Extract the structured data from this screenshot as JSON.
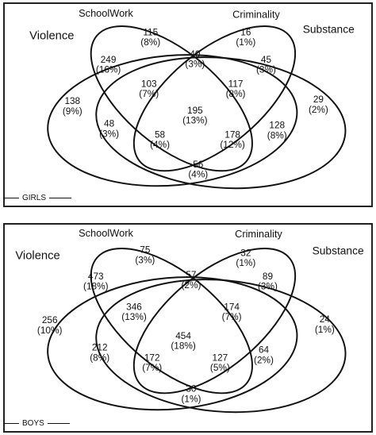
{
  "panels": [
    {
      "id": "girls",
      "name": "GIRLS",
      "sets": {
        "violence": "Violence",
        "schoolwork": "SchoolWork",
        "criminality": "Criminality",
        "substance": "Substance"
      },
      "regions": [
        {
          "key": "schoolwork_only",
          "count": "115",
          "pct": "(8%)"
        },
        {
          "key": "criminality_only",
          "count": "16",
          "pct": "(1%)"
        },
        {
          "key": "violence_schoolwork",
          "count": "249",
          "pct": "(16%)"
        },
        {
          "key": "schoolwork_criminality",
          "count": "40",
          "pct": "(3%)"
        },
        {
          "key": "criminality_substance",
          "count": "45",
          "pct": "(3%)"
        },
        {
          "key": "violence_only",
          "count": "138",
          "pct": "(9%)"
        },
        {
          "key": "violence_schoolwork_criminality",
          "count": "103",
          "pct": "(7%)"
        },
        {
          "key": "schoolwork_criminality_substance",
          "count": "117",
          "pct": "(8%)"
        },
        {
          "key": "substance_only",
          "count": "29",
          "pct": "(2%)"
        },
        {
          "key": "all_four",
          "count": "195",
          "pct": "(13%)"
        },
        {
          "key": "violence_criminality",
          "count": "48",
          "pct": "(3%)"
        },
        {
          "key": "schoolwork_substance",
          "count": "128",
          "pct": "(8%)"
        },
        {
          "key": "violence_criminality_substance",
          "count": "58",
          "pct": "(4%)"
        },
        {
          "key": "violence_schoolwork_substance",
          "count": "178",
          "pct": "(12%)"
        },
        {
          "key": "violence_substance",
          "count": "56",
          "pct": "(4%)"
        }
      ]
    },
    {
      "id": "boys",
      "name": "BOYS",
      "sets": {
        "violence": "Violence",
        "schoolwork": "SchoolWork",
        "criminality": "Criminality",
        "substance": "Substance"
      },
      "regions": [
        {
          "key": "schoolwork_only",
          "count": "75",
          "pct": "(3%)"
        },
        {
          "key": "criminality_only",
          "count": "32",
          "pct": "(1%)"
        },
        {
          "key": "violence_schoolwork",
          "count": "473",
          "pct": "(18%)"
        },
        {
          "key": "schoolwork_criminality",
          "count": "57",
          "pct": "(2%)"
        },
        {
          "key": "criminality_substance",
          "count": "89",
          "pct": "(3%)"
        },
        {
          "key": "violence_only",
          "count": "256",
          "pct": "(10%)"
        },
        {
          "key": "violence_schoolwork_criminality",
          "count": "346",
          "pct": "(13%)"
        },
        {
          "key": "schoolwork_criminality_substance",
          "count": "174",
          "pct": "(7%)"
        },
        {
          "key": "substance_only",
          "count": "24",
          "pct": "(1%)"
        },
        {
          "key": "all_four",
          "count": "454",
          "pct": "(18%)"
        },
        {
          "key": "violence_criminality",
          "count": "212",
          "pct": "(8%)"
        },
        {
          "key": "schoolwork_substance",
          "count": "64",
          "pct": "(2%)"
        },
        {
          "key": "violence_criminality_substance",
          "count": "172",
          "pct": "(7%)"
        },
        {
          "key": "violence_schoolwork_substance",
          "count": "127",
          "pct": "(5%)"
        },
        {
          "key": "violence_substance",
          "count": "30",
          "pct": "(1%)"
        }
      ]
    }
  ]
}
